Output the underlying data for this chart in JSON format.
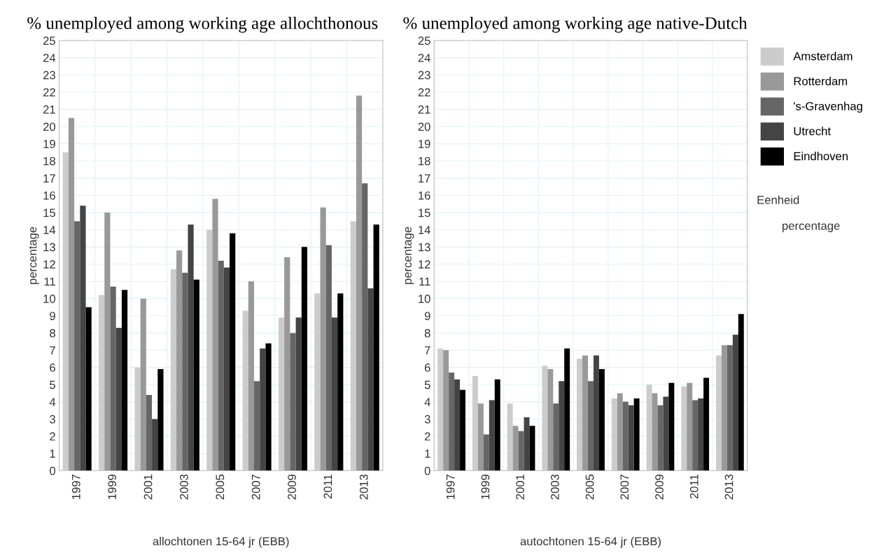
{
  "chart_data": [
    {
      "type": "bar",
      "title": "% unemployed among working age allochthonous",
      "xlabel": "allochtonen 15-64 jr (EBB)",
      "ylabel": "percentage",
      "categories": [
        "1997",
        "1999",
        "2001",
        "2003",
        "2005",
        "2007",
        "2009",
        "2011",
        "2013"
      ],
      "ylim": [
        0,
        25
      ],
      "yticks": [
        0,
        1,
        2,
        3,
        4,
        5,
        6,
        7,
        8,
        9,
        10,
        11,
        12,
        13,
        14,
        15,
        16,
        17,
        18,
        19,
        20,
        21,
        22,
        23,
        24,
        25
      ],
      "grid": true,
      "legend": false,
      "series": [
        {
          "color": "#cccccc",
          "values": [
            18.5,
            10.2,
            6.0,
            11.7,
            14.0,
            9.3,
            8.9,
            10.3,
            14.5
          ]
        },
        {
          "color": "#999999",
          "values": [
            20.5,
            15.0,
            10.0,
            12.8,
            15.8,
            11.0,
            12.4,
            15.3,
            21.8
          ]
        },
        {
          "color": "#666666",
          "values": [
            14.5,
            10.7,
            4.4,
            11.5,
            12.2,
            5.2,
            8.0,
            13.1,
            16.7
          ]
        },
        {
          "color": "#444444",
          "values": [
            15.4,
            8.3,
            3.0,
            14.3,
            11.8,
            7.1,
            8.9,
            8.9,
            10.6
          ]
        },
        {
          "color": "#000000",
          "values": [
            9.5,
            10.5,
            5.9,
            11.1,
            13.8,
            7.4,
            13.0,
            10.3,
            14.3
          ]
        }
      ]
    },
    {
      "type": "bar",
      "title": "% unemployed among working age native-Dutch",
      "xlabel": "autochtonen 15-64 jr (EBB)",
      "ylabel": "percentage",
      "categories": [
        "1997",
        "1999",
        "2001",
        "2003",
        "2005",
        "2007",
        "2009",
        "2011",
        "2013"
      ],
      "ylim": [
        0,
        25
      ],
      "yticks": [
        0,
        1,
        2,
        3,
        4,
        5,
        6,
        7,
        8,
        9,
        10,
        11,
        12,
        13,
        14,
        15,
        16,
        17,
        18,
        19,
        20,
        21,
        22,
        23,
        24,
        25
      ],
      "grid": true,
      "legend": "right",
      "annotations": [
        "Eenheid",
        "percentage"
      ],
      "series": [
        {
          "name": "Amsterdam",
          "color": "#cccccc",
          "values": [
            7.1,
            5.5,
            3.9,
            6.1,
            6.5,
            4.2,
            5.0,
            4.9,
            6.7
          ]
        },
        {
          "name": "Rotterdam",
          "color": "#999999",
          "values": [
            7.0,
            3.9,
            2.6,
            5.9,
            6.7,
            4.5,
            4.5,
            5.1,
            7.3
          ]
        },
        {
          "name": "'s-Gravenhag",
          "color": "#666666",
          "values": [
            5.7,
            2.1,
            2.3,
            3.9,
            5.2,
            4.0,
            3.8,
            4.1,
            7.3
          ]
        },
        {
          "name": "Utrecht",
          "color": "#444444",
          "values": [
            5.3,
            4.1,
            3.1,
            5.2,
            6.7,
            3.8,
            4.3,
            4.2,
            7.9
          ]
        },
        {
          "name": "Eindhoven",
          "color": "#000000",
          "values": [
            4.7,
            5.3,
            2.6,
            7.1,
            5.9,
            4.2,
            5.1,
            5.4,
            9.1
          ]
        }
      ]
    }
  ]
}
